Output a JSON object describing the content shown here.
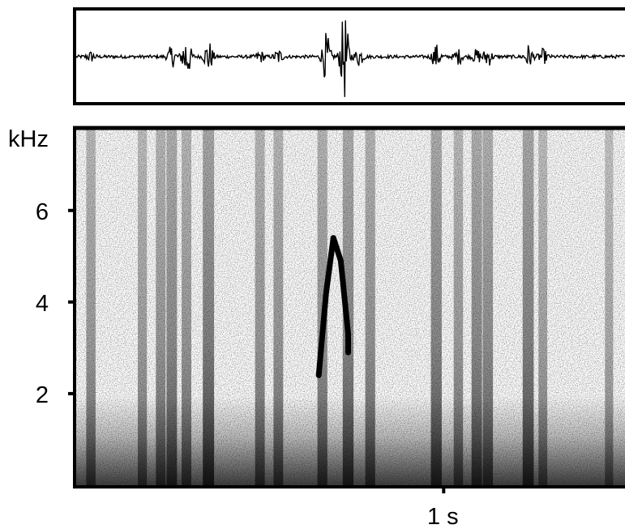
{
  "chart_data": [
    {
      "type": "line",
      "panel": "waveform",
      "title": "",
      "xlabel": "",
      "ylabel": "",
      "xlim": [
        0,
        1.5
      ],
      "ylim": [
        -1,
        1
      ],
      "bursts": [
        {
          "t": 0.04,
          "amp": 0.1
        },
        {
          "t": 0.26,
          "amp": 0.22
        },
        {
          "t": 0.3,
          "amp": 0.55
        },
        {
          "t": 0.36,
          "amp": 0.35
        },
        {
          "t": 0.5,
          "amp": 0.12
        },
        {
          "t": 0.55,
          "amp": 0.15
        },
        {
          "t": 0.68,
          "amp": 0.5
        },
        {
          "t": 0.73,
          "amp": 0.95
        },
        {
          "t": 0.77,
          "amp": 0.2
        },
        {
          "t": 0.98,
          "amp": 0.25
        },
        {
          "t": 1.04,
          "amp": 0.15
        },
        {
          "t": 1.09,
          "amp": 0.15
        },
        {
          "t": 1.12,
          "amp": 0.2
        },
        {
          "t": 1.23,
          "amp": 0.25
        },
        {
          "t": 1.27,
          "amp": 0.15
        }
      ]
    },
    {
      "type": "heatmap",
      "panel": "spectrogram",
      "title": "",
      "xlabel": "1 s",
      "ylabel": "kHz",
      "xlim": [
        0,
        1.5
      ],
      "ylim": [
        0,
        7.8
      ],
      "x_ticks": [
        {
          "value": 1.0,
          "label": "1 s"
        }
      ],
      "y_ticks": [
        {
          "value": 2,
          "label": "2"
        },
        {
          "value": 4,
          "label": "4"
        },
        {
          "value": 6,
          "label": "6"
        }
      ],
      "vertical_clicks": [
        {
          "t": 0.04,
          "strength": 0.5
        },
        {
          "t": 0.18,
          "strength": 0.45
        },
        {
          "t": 0.23,
          "strength": 0.55
        },
        {
          "t": 0.26,
          "strength": 0.7
        },
        {
          "t": 0.3,
          "strength": 0.55
        },
        {
          "t": 0.36,
          "strength": 0.85
        },
        {
          "t": 0.5,
          "strength": 0.55
        },
        {
          "t": 0.55,
          "strength": 0.55
        },
        {
          "t": 0.67,
          "strength": 0.6
        },
        {
          "t": 0.74,
          "strength": 0.75
        },
        {
          "t": 0.8,
          "strength": 0.6
        },
        {
          "t": 0.98,
          "strength": 0.75
        },
        {
          "t": 1.04,
          "strength": 0.5
        },
        {
          "t": 1.09,
          "strength": 0.7
        },
        {
          "t": 1.12,
          "strength": 0.65
        },
        {
          "t": 1.23,
          "strength": 0.8
        },
        {
          "t": 1.27,
          "strength": 0.4
        },
        {
          "t": 1.45,
          "strength": 0.3
        }
      ],
      "tonal_sweeps": [
        {
          "points": [
            [
              0.66,
              2.4
            ],
            [
              0.68,
              4.2
            ],
            [
              0.7,
              5.4
            ]
          ]
        },
        {
          "points": [
            [
              0.7,
              5.4
            ],
            [
              0.72,
              4.9
            ],
            [
              0.74,
              3.3
            ]
          ]
        },
        {
          "points": [
            [
              0.74,
              3.3
            ],
            [
              0.74,
              2.9
            ]
          ]
        }
      ]
    }
  ]
}
